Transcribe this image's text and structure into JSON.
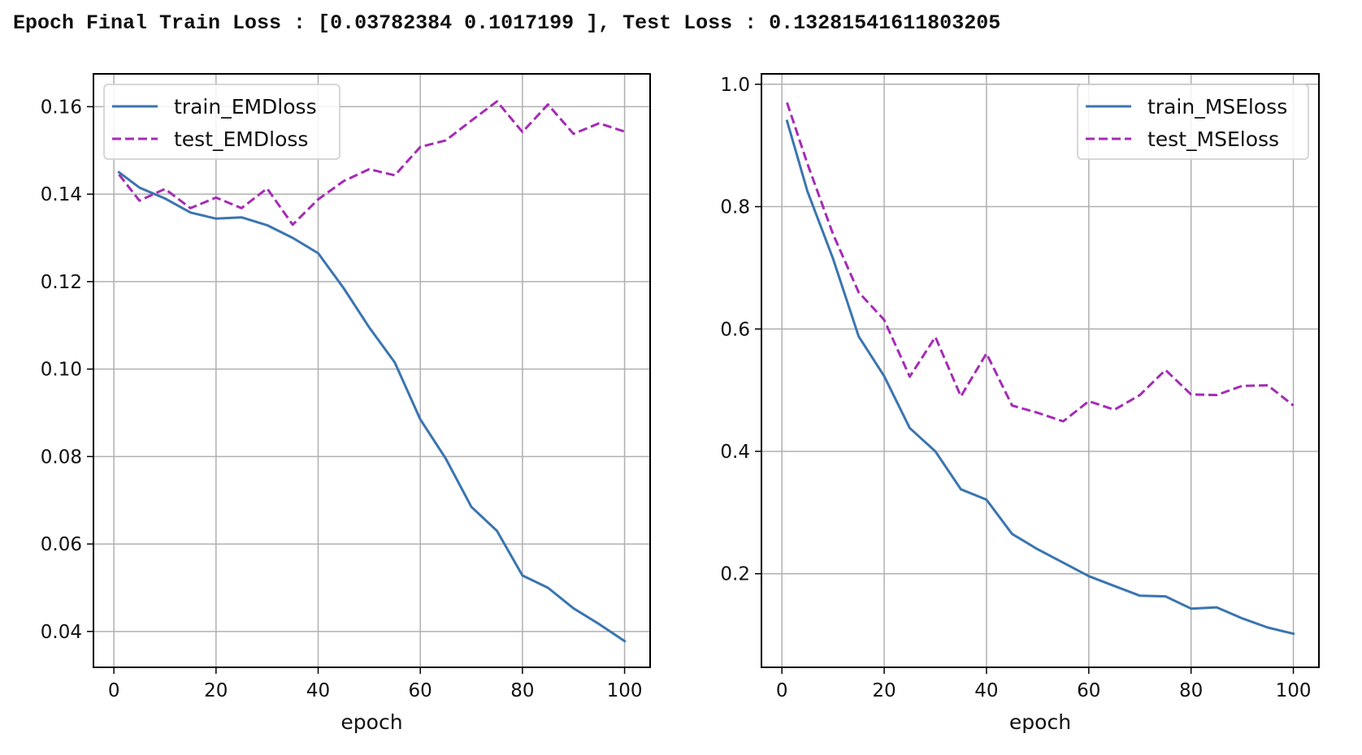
{
  "header": {
    "text": "Epoch Final Train Loss : [0.03782384 0.1017199 ], Test Loss : 0.13281541611803205"
  },
  "chart_data": [
    {
      "type": "line",
      "xlabel": "epoch",
      "ylabel": "",
      "xlim": [
        -4,
        105
      ],
      "ylim": [
        0.0318,
        0.1675
      ],
      "xticks": [
        0,
        20,
        40,
        60,
        80,
        100
      ],
      "xtick_labels": [
        "0",
        "20",
        "40",
        "60",
        "80",
        "100"
      ],
      "yticks": [
        0.04,
        0.06,
        0.08,
        0.1,
        0.12,
        0.14,
        0.16
      ],
      "ytick_labels": [
        "0.04",
        "0.06",
        "0.08",
        "0.10",
        "0.12",
        "0.14",
        "0.16"
      ],
      "grid": true,
      "legend_position": "upper-left",
      "series": [
        {
          "name": "train_EMDloss",
          "color": "#3a75b0",
          "dash": "solid",
          "x": [
            1,
            5,
            10,
            15,
            20,
            25,
            30,
            35,
            40,
            45,
            50,
            55,
            60,
            65,
            70,
            75,
            80,
            85,
            90,
            95,
            100
          ],
          "y": [
            0.145,
            0.1415,
            0.139,
            0.1358,
            0.1344,
            0.1347,
            0.1329,
            0.13,
            0.1265,
            0.1185,
            0.1095,
            0.1015,
            0.0885,
            0.0795,
            0.0685,
            0.063,
            0.0528,
            0.05,
            0.0453,
            0.0417,
            0.0378
          ]
        },
        {
          "name": "test_EMDloss",
          "color": "#a52bb5",
          "dash": "dashed",
          "x": [
            1,
            5,
            10,
            15,
            20,
            25,
            30,
            35,
            40,
            45,
            50,
            55,
            60,
            65,
            70,
            75,
            80,
            85,
            90,
            95,
            100
          ],
          "y": [
            0.1445,
            0.1385,
            0.1412,
            0.1368,
            0.1392,
            0.1368,
            0.1413,
            0.133,
            0.1388,
            0.143,
            0.1457,
            0.1443,
            0.1508,
            0.1523,
            0.1568,
            0.1612,
            0.1542,
            0.1605,
            0.1538,
            0.1562,
            0.1543
          ]
        }
      ]
    },
    {
      "type": "line",
      "xlabel": "epoch",
      "ylabel": "",
      "xlim": [
        -4,
        105
      ],
      "ylim": [
        0.047,
        1.017
      ],
      "xticks": [
        0,
        20,
        40,
        60,
        80,
        100
      ],
      "xtick_labels": [
        "0",
        "20",
        "40",
        "60",
        "80",
        "100"
      ],
      "yticks": [
        0.2,
        0.4,
        0.6,
        0.8,
        1.0
      ],
      "ytick_labels": [
        "0.2",
        "0.4",
        "0.6",
        "0.8",
        "1.0"
      ],
      "grid": true,
      "legend_position": "upper-right",
      "series": [
        {
          "name": "train_MSEloss",
          "color": "#3a75b0",
          "dash": "solid",
          "x": [
            1,
            5,
            10,
            15,
            20,
            25,
            30,
            35,
            40,
            45,
            50,
            55,
            60,
            65,
            70,
            75,
            80,
            85,
            90,
            95,
            100
          ],
          "y": [
            0.94,
            0.825,
            0.715,
            0.588,
            0.523,
            0.438,
            0.4,
            0.338,
            0.321,
            0.265,
            0.24,
            0.218,
            0.196,
            0.18,
            0.164,
            0.163,
            0.143,
            0.145,
            0.127,
            0.112,
            0.102
          ]
        },
        {
          "name": "test_MSEloss",
          "color": "#a52bb5",
          "dash": "dashed",
          "x": [
            1,
            5,
            10,
            15,
            20,
            25,
            30,
            35,
            40,
            45,
            50,
            55,
            60,
            65,
            70,
            75,
            80,
            85,
            90,
            95,
            100
          ],
          "y": [
            0.97,
            0.87,
            0.755,
            0.66,
            0.615,
            0.522,
            0.587,
            0.49,
            0.56,
            0.475,
            0.463,
            0.449,
            0.482,
            0.468,
            0.492,
            0.533,
            0.493,
            0.492,
            0.507,
            0.508,
            0.475
          ]
        }
      ]
    }
  ]
}
